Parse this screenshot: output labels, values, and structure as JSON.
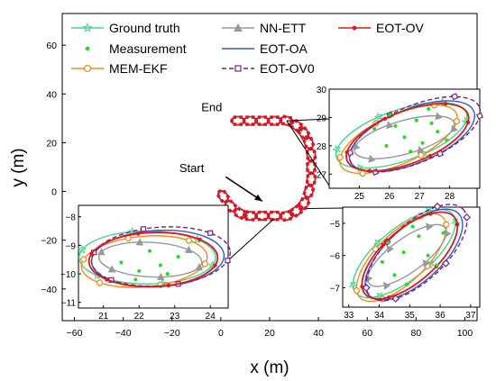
{
  "chart_data": [
    {
      "type": "line",
      "role": "main",
      "xlabel": "x (m)",
      "ylabel": "y (m)",
      "xlim": [
        -65,
        105
      ],
      "ylim": [
        -53,
        73
      ],
      "xticks": [
        -60,
        -40,
        -20,
        0,
        20,
        40,
        60,
        80,
        100
      ],
      "yticks": [
        -40,
        -20,
        0,
        20,
        40,
        60
      ],
      "grid": false,
      "legend_position": "top",
      "series": [
        {
          "name": "Ground truth",
          "color": "#3fd690",
          "marker": "star",
          "style": "solid"
        },
        {
          "name": "Measurement",
          "color": "#22dd22",
          "marker": "dot",
          "style": "none"
        },
        {
          "name": "MEM-EKF",
          "color": "#f08c1e",
          "marker": "circle",
          "style": "solid"
        },
        {
          "name": "NN-ETT",
          "color": "#999999",
          "marker": "triangle",
          "style": "solid"
        },
        {
          "name": "EOT-OA",
          "color": "#3355cc",
          "marker": "none",
          "style": "solid"
        },
        {
          "name": "EOT-OV0",
          "color": "#7a2080",
          "marker": "square",
          "style": "dashed"
        },
        {
          "name": "EOT-OV",
          "color": "#e01818",
          "marker": "dot",
          "style": "solid"
        }
      ],
      "trajectory_centers": [
        [
          7,
          29
        ],
        [
          12,
          29
        ],
        [
          17,
          29
        ],
        [
          22,
          29
        ],
        [
          27,
          29
        ],
        [
          31,
          27
        ],
        [
          34,
          24
        ],
        [
          36,
          20
        ],
        [
          37,
          15
        ],
        [
          37,
          10
        ],
        [
          37,
          5
        ],
        [
          36,
          0
        ],
        [
          34,
          -5
        ],
        [
          31,
          -8
        ],
        [
          27,
          -10
        ],
        [
          22,
          -10
        ],
        [
          17,
          -10
        ],
        [
          12,
          -10
        ],
        [
          8,
          -9
        ],
        [
          4,
          -6
        ],
        [
          1,
          -2
        ]
      ],
      "annotations": [
        {
          "text": "End",
          "at": [
            -8,
            33
          ]
        },
        {
          "text": "Start",
          "at": [
            -17,
            8
          ]
        }
      ],
      "arrow": {
        "from": [
          2,
          6
        ],
        "to": [
          17,
          -4
        ]
      }
    },
    {
      "type": "line",
      "role": "inset-top-right",
      "xlim": [
        24,
        29
      ],
      "ylim": [
        26.5,
        30
      ],
      "xticks": [
        25,
        26,
        27,
        28
      ],
      "yticks": [
        27,
        28,
        29,
        30
      ],
      "center": [
        26.6,
        28.3
      ],
      "measurements": [
        [
          26.9,
          28.9
        ],
        [
          27.4,
          28.8
        ],
        [
          26.2,
          28.7
        ],
        [
          27.6,
          28.5
        ],
        [
          26.5,
          28.3
        ],
        [
          27.1,
          28.1
        ],
        [
          25.9,
          28.0
        ],
        [
          26.7,
          27.8
        ],
        [
          27.9,
          28.2
        ],
        [
          26.0,
          29.1
        ],
        [
          27.3,
          29.3
        ],
        [
          25.5,
          28.6
        ]
      ]
    },
    {
      "type": "line",
      "role": "inset-bottom-right",
      "xlim": [
        32.8,
        37.3
      ],
      "ylim": [
        -7.6,
        -4.5
      ],
      "xticks": [
        33,
        34,
        35,
        36,
        37
      ],
      "yticks": [
        -7,
        -6,
        -5
      ],
      "center": [
        35.0,
        -6.0
      ],
      "measurements": [
        [
          34.3,
          -5.6
        ],
        [
          34.8,
          -5.9
        ],
        [
          35.3,
          -5.4
        ],
        [
          35.9,
          -6.3
        ],
        [
          34.5,
          -6.6
        ],
        [
          35.6,
          -6.0
        ],
        [
          34.1,
          -6.2
        ],
        [
          35.1,
          -5.1
        ],
        [
          36.1,
          -5.3
        ],
        [
          34.9,
          -6.9
        ]
      ]
    },
    {
      "type": "line",
      "role": "inset-bottom-left",
      "xlim": [
        20.3,
        24.5
      ],
      "ylim": [
        -11.2,
        -7.6
      ],
      "xticks": [
        21,
        22,
        23,
        24
      ],
      "yticks": [
        -11,
        -10,
        -9,
        -8
      ],
      "center": [
        22.4,
        -9.5
      ],
      "measurements": [
        [
          22.0,
          -9.9
        ],
        [
          21.9,
          -10.2
        ],
        [
          22.6,
          -9.7
        ],
        [
          23.1,
          -9.4
        ],
        [
          22.3,
          -9.2
        ],
        [
          21.5,
          -9.6
        ],
        [
          22.8,
          -10.0
        ]
      ]
    }
  ],
  "figure": {
    "colors": {
      "axis": "#000000",
      "background": "#ffffff"
    }
  }
}
